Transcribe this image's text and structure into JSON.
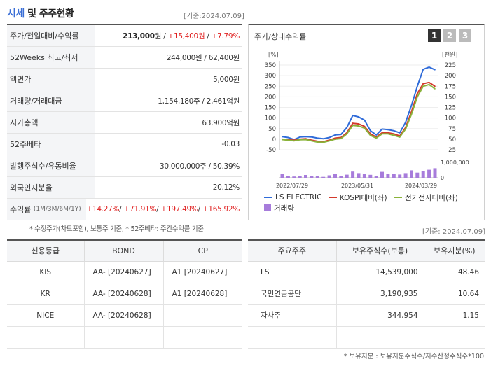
{
  "header": {
    "title_part1": "시세",
    "title_part2": "및 주주현황",
    "base_date": "[기준:2024.07.09]"
  },
  "stats": [
    {
      "label": "주가/전일대비/수익률",
      "value_main": "213,000",
      "unit": "원",
      "sep1": " / ",
      "change": "+15,400원",
      "sep2": " / ",
      "rate": "+7.79%"
    },
    {
      "label": "52Weeks 최고/최저",
      "value": "244,000원 / 62,400원"
    },
    {
      "label": "액면가",
      "value": "5,000원"
    },
    {
      "label": "거래량/거래대금",
      "value": "1,154,180주 / 2,461억원"
    },
    {
      "label": "시가총액",
      "value": "63,900억원"
    },
    {
      "label": "52주베타",
      "value": "-0.03"
    },
    {
      "label": "발행주식수/유동비율",
      "value": "30,000,000주 / 50.39%"
    },
    {
      "label": "외국인지분율",
      "value": "20.12%"
    },
    {
      "label": "수익률",
      "label_small": "(1M/3M/6M/1Y)",
      "returns": [
        "+14.27%",
        "+71.91%",
        "+197.49%",
        "+165.92%"
      ],
      "sep": "/ "
    }
  ],
  "footnote": "* 수정주가(차트포함), 보통주 기준, * 52주베타: 주간수익률 기준",
  "chart_panel": {
    "title": "주가/상대수익률",
    "pages": [
      "1",
      "2",
      "3"
    ],
    "active_page": "1",
    "base_date": "[기준: 2024.07.09]"
  },
  "chart_data": {
    "type": "line",
    "left_axis_unit": "[%]",
    "right_axis_unit": "[천원]",
    "left_ticks": [
      "350",
      "300",
      "250",
      "200",
      "150",
      "100",
      "50",
      "0",
      "-50"
    ],
    "right_ticks": [
      "225",
      "200",
      "175",
      "150",
      "125",
      "100",
      "75",
      "50",
      "25"
    ],
    "left_ylim": [
      -50,
      350
    ],
    "volume_ticks": [
      "1,000,000",
      "0"
    ],
    "volume_ylim": [
      0,
      1000000
    ],
    "x_tick_labels": [
      "2022/07/29",
      "2023/05/31",
      "2024/03/29"
    ],
    "series": [
      {
        "name": "LS ELECTRIC",
        "color": "#2f6bd9",
        "values": [
          12,
          8,
          -2,
          10,
          12,
          10,
          5,
          2,
          8,
          20,
          22,
          55,
          112,
          105,
          90,
          40,
          20,
          48,
          45,
          40,
          30,
          80,
          160,
          250,
          330,
          340,
          328
        ]
      },
      {
        "name": "KOSPI대비(좌)",
        "color": "#d33a2c",
        "values": [
          0,
          -3,
          -5,
          0,
          2,
          -5,
          -10,
          -12,
          -5,
          5,
          8,
          30,
          75,
          72,
          60,
          25,
          10,
          30,
          30,
          25,
          15,
          55,
          130,
          215,
          262,
          268,
          250
        ]
      },
      {
        "name": "전기전자대비(좌)",
        "color": "#8ab33a",
        "values": [
          -2,
          -5,
          -8,
          -3,
          -2,
          -8,
          -14,
          -15,
          -8,
          0,
          3,
          25,
          65,
          62,
          52,
          18,
          5,
          25,
          25,
          18,
          10,
          48,
          118,
          200,
          250,
          258,
          238
        ]
      }
    ],
    "volume": {
      "name": "거래량",
      "color": "#a77cdb",
      "values": [
        250000,
        120000,
        80000,
        110000,
        180000,
        100000,
        90000,
        60000,
        160000,
        240000,
        130000,
        200000,
        400000,
        300000,
        260000,
        190000,
        130000,
        380000,
        260000,
        240000,
        210000,
        300000,
        480000,
        330000,
        420000,
        520000,
        620000
      ]
    }
  },
  "rating_table": {
    "headers": [
      "신용등급",
      "BOND",
      "CP"
    ],
    "rows": [
      {
        "agency": "KIS",
        "bond": "AA-  [20240627]",
        "cp": "A1  [20240627]"
      },
      {
        "agency": "KR",
        "bond": "AA-  [20240628]",
        "cp": "A1  [20240628]"
      },
      {
        "agency": "NICE",
        "bond": "AA-  [20240628]",
        "cp": ""
      },
      {
        "agency": "",
        "bond": "",
        "cp": ""
      }
    ]
  },
  "holders_table": {
    "headers": [
      "주요주주",
      "보유주식수(보통)",
      "보유지분(%)"
    ],
    "rows": [
      {
        "name": "LS",
        "shares": "14,539,000",
        "pct": "48.46"
      },
      {
        "name": "국민연금공단",
        "shares": "3,190,935",
        "pct": "10.64"
      },
      {
        "name": "자사주",
        "shares": "344,954",
        "pct": "1.15"
      },
      {
        "name": "",
        "shares": "",
        "pct": ""
      }
    ]
  },
  "bottom_note": "* 보유지분 : 보유지분주식수/지수산정주식수*100"
}
